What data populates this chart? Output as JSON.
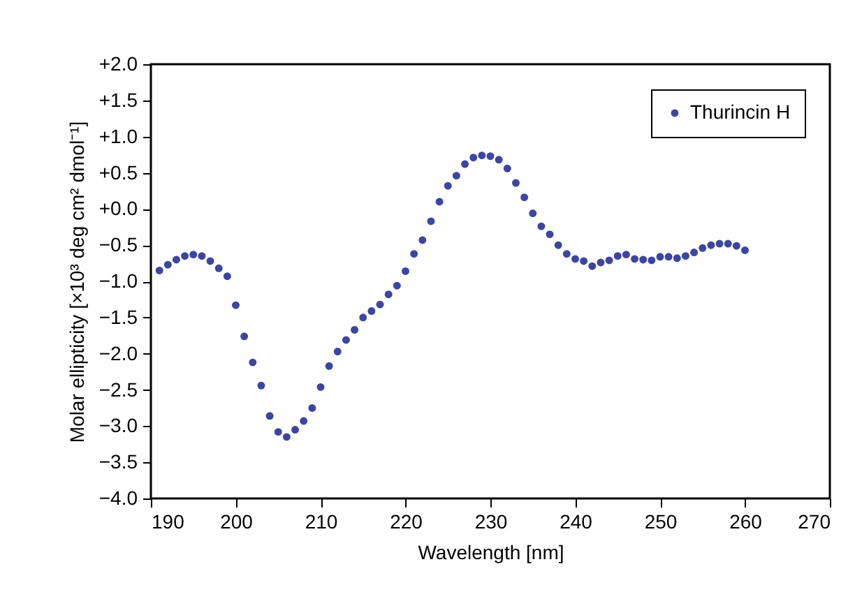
{
  "chart_data": {
    "type": "scatter",
    "xlabel": "Wavelength [nm]",
    "ylabel": "Molar ellipticity [×10³ deg cm² dmol⁻¹]",
    "x": [
      191,
      192,
      193,
      194,
      195,
      196,
      197,
      198,
      199,
      200,
      201,
      202,
      203,
      204,
      205,
      206,
      207,
      208,
      209,
      210,
      211,
      212,
      213,
      214,
      215,
      216,
      217,
      218,
      219,
      220,
      221,
      222,
      223,
      224,
      225,
      226,
      227,
      228,
      229,
      230,
      231,
      232,
      233,
      234,
      235,
      236,
      237,
      238,
      239,
      240,
      241,
      242,
      243,
      244,
      245,
      246,
      247,
      248,
      249,
      250,
      251,
      252,
      253,
      254,
      255,
      256,
      257,
      258,
      259,
      260
    ],
    "series": [
      {
        "name": "Thurincin H",
        "color": "#3c46a0",
        "values": [
          -0.85,
          -0.77,
          -0.7,
          -0.65,
          -0.63,
          -0.65,
          -0.72,
          -0.82,
          -0.93,
          -1.33,
          -1.76,
          -2.12,
          -2.44,
          -2.86,
          -3.08,
          -3.15,
          -3.05,
          -2.93,
          -2.75,
          -2.46,
          -2.17,
          -1.97,
          -1.81,
          -1.67,
          -1.5,
          -1.41,
          -1.32,
          -1.18,
          -1.06,
          -0.86,
          -0.62,
          -0.43,
          -0.17,
          0.1,
          0.32,
          0.46,
          0.62,
          0.71,
          0.74,
          0.73,
          0.68,
          0.56,
          0.36,
          0.16,
          -0.06,
          -0.24,
          -0.35,
          -0.5,
          -0.62,
          -0.69,
          -0.72,
          -0.79,
          -0.74,
          -0.71,
          -0.65,
          -0.63,
          -0.69,
          -0.7,
          -0.71,
          -0.66,
          -0.66,
          -0.68,
          -0.65,
          -0.6,
          -0.54,
          -0.5,
          -0.48,
          -0.48,
          -0.51,
          -0.57
        ]
      }
    ],
    "xlim": [
      190,
      270
    ],
    "xticks": [
      190,
      200,
      210,
      220,
      230,
      240,
      250,
      260,
      270
    ],
    "ylim": [
      -4,
      2
    ],
    "yticks": [
      {
        "value": 2,
        "label": "+2.0"
      },
      {
        "value": 1.5,
        "label": "+1.5"
      },
      {
        "value": 1,
        "label": "+1.0"
      },
      {
        "value": 0.5,
        "label": "+0.5"
      },
      {
        "value": 0,
        "label": "+0.0"
      },
      {
        "value": -0.5,
        "label": "−0.5"
      },
      {
        "value": -1,
        "label": "−1.0"
      },
      {
        "value": -1.5,
        "label": "−1.5"
      },
      {
        "value": -2,
        "label": "−2.0"
      },
      {
        "value": -2.5,
        "label": "−2.5"
      },
      {
        "value": -3,
        "label": "−3.0"
      },
      {
        "value": -3.5,
        "label": "−3.5"
      },
      {
        "value": -4,
        "label": "−4.0"
      }
    ],
    "grid": false,
    "legend": "top right",
    "marker": "circle"
  }
}
